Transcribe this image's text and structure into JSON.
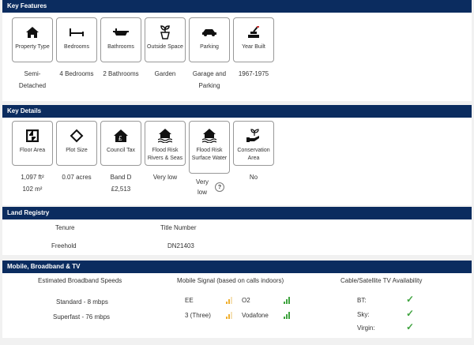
{
  "key_features": {
    "title": "Key Features",
    "items": [
      {
        "icon": "house-icon",
        "label": "Property Type",
        "value": "Semi-Detached"
      },
      {
        "icon": "bed-icon",
        "label": "Bedrooms",
        "value": "4 Bedrooms"
      },
      {
        "icon": "bath-icon",
        "label": "Bathrooms",
        "value": "2 Bathrooms"
      },
      {
        "icon": "plant-pot-icon",
        "label": "Outside Space",
        "value": "Garden"
      },
      {
        "icon": "car-icon",
        "label": "Parking",
        "value": "Garage and Parking"
      },
      {
        "icon": "brick-wall-icon",
        "label": "Year Built",
        "value": "1967-1975"
      }
    ]
  },
  "key_details": {
    "title": "Key Details",
    "items": [
      {
        "icon": "floor-plan-icon",
        "label": "Floor Area",
        "value": "1,097 ft²",
        "value2": "102 m²"
      },
      {
        "icon": "plot-icon",
        "label": "Plot Size",
        "value": "0.07 acres"
      },
      {
        "icon": "council-tax-house-icon",
        "label": "Council Tax",
        "value": "Band D",
        "value2": "£2,513"
      },
      {
        "icon": "flood-house-icon",
        "label": "Flood Risk Rivers & Seas",
        "value": "Very low"
      },
      {
        "icon": "flood-house-icon",
        "label": "Flood Risk Surface Water",
        "value": "Very low",
        "help": "?"
      },
      {
        "icon": "hand-plant-icon",
        "label": "Conservation Area",
        "value": "No"
      }
    ]
  },
  "land_registry": {
    "title": "Land Registry",
    "headers": [
      "Tenure",
      "Title Number"
    ],
    "row": [
      "Freehold",
      "DN21403"
    ]
  },
  "mobile": {
    "title": "Mobile, Broadband & TV",
    "broadband": {
      "title": "Estimated Broadband Speeds",
      "items": [
        "Standard - 8 mbps",
        "Superfast - 76 mbps"
      ]
    },
    "signal": {
      "title": "Mobile Signal (based on calls indoors)",
      "items": [
        {
          "name": "EE",
          "level": "medium",
          "color": "#f0b030"
        },
        {
          "name": "O2",
          "level": "good",
          "color": "#3fa33f"
        },
        {
          "name": "3 (Three)",
          "level": "medium",
          "color": "#f0b030"
        },
        {
          "name": "Vodafone",
          "level": "good",
          "color": "#3fa33f"
        }
      ]
    },
    "tv": {
      "title": "Cable/Satellite TV Availability",
      "items": [
        {
          "name": "BT:",
          "available": true
        },
        {
          "name": "Sky:",
          "available": true
        },
        {
          "name": "Virgin:",
          "available": true
        }
      ]
    }
  }
}
